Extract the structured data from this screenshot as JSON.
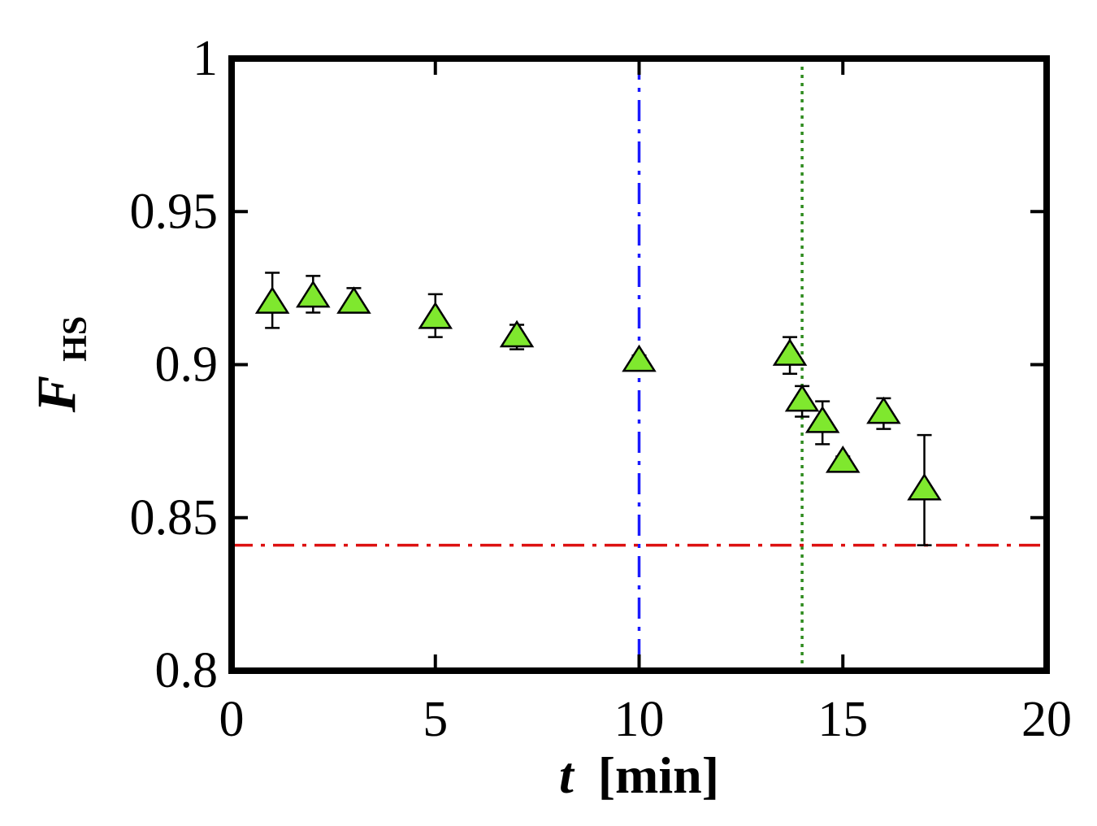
{
  "chart_data": {
    "type": "scatter",
    "title": "",
    "xlabel": {
      "symbol": "t",
      "unit": "[min]"
    },
    "ylabel": {
      "symbol": "F",
      "subscript": "HS"
    },
    "xlim": [
      0,
      20
    ],
    "ylim": [
      0.8,
      1.0
    ],
    "xticks": [
      0,
      5,
      10,
      15,
      20
    ],
    "xtick_labels": [
      "0",
      "5",
      "10",
      "15",
      "20"
    ],
    "yticks": [
      0.8,
      0.85,
      0.9,
      0.95,
      1.0
    ],
    "ytick_labels": [
      "0.8",
      "0.85",
      "0.9",
      "0.95",
      "1"
    ],
    "grid": false,
    "series": [
      {
        "marker": "triangle",
        "color": "#7fe82e",
        "edge_color": "#000000",
        "points": [
          {
            "x": 1.0,
            "y": 0.92,
            "err_up": 0.01,
            "err_down": 0.008
          },
          {
            "x": 2.0,
            "y": 0.922,
            "err_up": 0.007,
            "err_down": 0.005
          },
          {
            "x": 3.0,
            "y": 0.92,
            "err_up": 0.005,
            "err_down": 0.002
          },
          {
            "x": 5.0,
            "y": 0.915,
            "err_up": 0.008,
            "err_down": 0.006
          },
          {
            "x": 7.0,
            "y": 0.909,
            "err_up": 0.004,
            "err_down": 0.004
          },
          {
            "x": 10.0,
            "y": 0.901,
            "err_up": 0.002,
            "err_down": 0.002
          },
          {
            "x": 13.7,
            "y": 0.903,
            "err_up": 0.006,
            "err_down": 0.006
          },
          {
            "x": 14.0,
            "y": 0.888,
            "err_up": 0.005,
            "err_down": 0.005
          },
          {
            "x": 14.5,
            "y": 0.881,
            "err_up": 0.007,
            "err_down": 0.007
          },
          {
            "x": 15.0,
            "y": 0.868,
            "err_up": 0.002,
            "err_down": 0.002
          },
          {
            "x": 16.0,
            "y": 0.884,
            "err_up": 0.005,
            "err_down": 0.005
          },
          {
            "x": 17.0,
            "y": 0.859,
            "err_up": 0.018,
            "err_down": 0.018
          }
        ]
      }
    ],
    "reference_lines": [
      {
        "orientation": "vertical",
        "x": 10.0,
        "color": "#1a1aff",
        "style": "dash-dot"
      },
      {
        "orientation": "vertical",
        "x": 14.0,
        "color": "#2e8b1e",
        "style": "dotted"
      },
      {
        "orientation": "horizontal",
        "y": 0.841,
        "color": "#dd1111",
        "style": "dash-dot"
      }
    ]
  }
}
